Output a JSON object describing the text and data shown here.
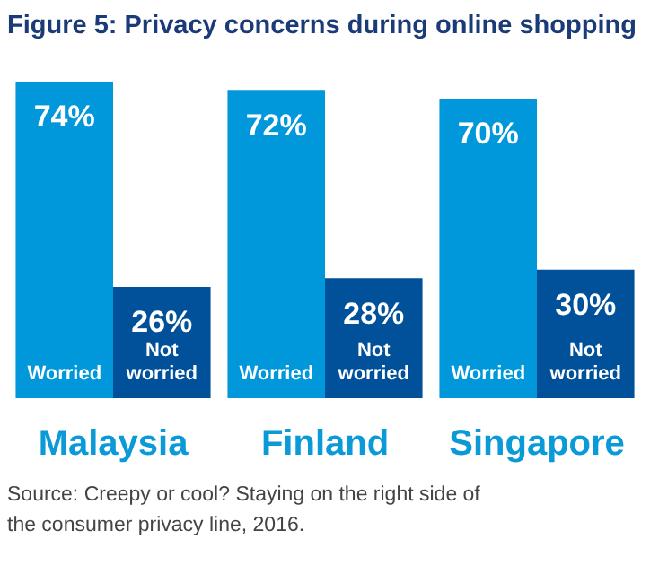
{
  "chart_data": {
    "type": "bar",
    "title": "Figure 5: Privacy concerns during online shopping",
    "categories": [
      "Malaysia",
      "Finland",
      "Singapore"
    ],
    "series": [
      {
        "name": "Worried",
        "color": "#0098db",
        "values": [
          74,
          72,
          70
        ],
        "value_labels": [
          "74%",
          "72%",
          "70%"
        ]
      },
      {
        "name": "Not worried",
        "color": "#00509a",
        "values": [
          26,
          28,
          30
        ],
        "value_labels": [
          "26%",
          "28%",
          "30%"
        ]
      }
    ],
    "legend": false,
    "annotations": [
      "Source: Creepy or cool? Staying on the right side of the consumer privacy line, 2016."
    ]
  }
}
